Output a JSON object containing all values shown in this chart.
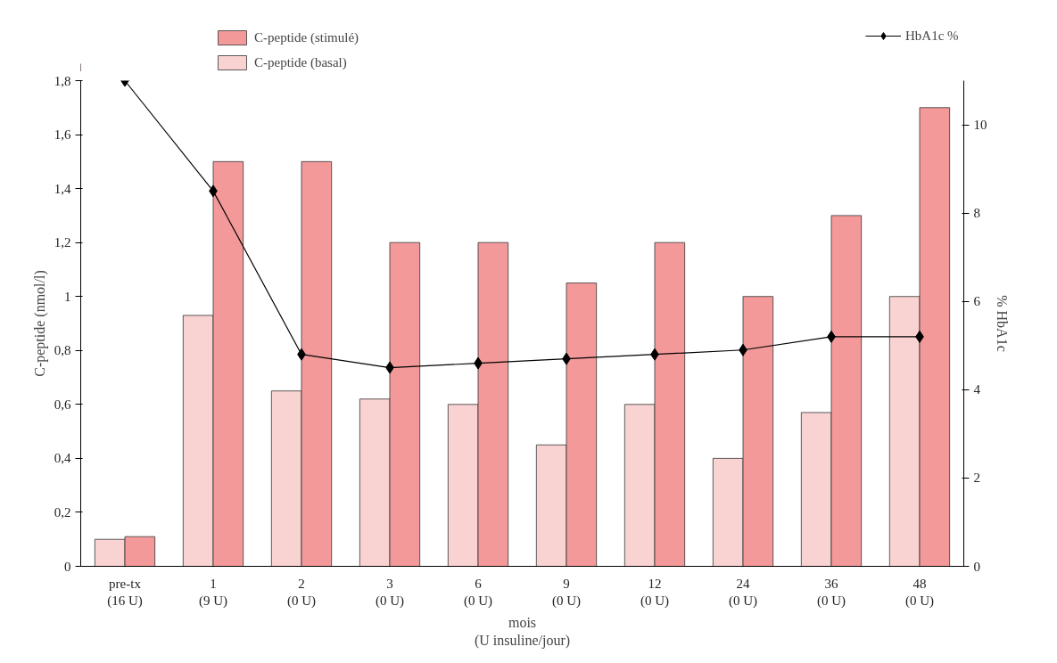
{
  "chart_data": {
    "type": "bar",
    "xlabel": "mois\n(U insuline/jour)",
    "ylabel": "C-peptide (nmol/l)",
    "y2label": "% HbA1c",
    "categories": [
      "pre-tx\n(16 U)",
      "1\n(9 U)",
      "2\n(0 U)",
      "3\n(0 U)",
      "6\n(0 U)",
      "9\n(0 U)",
      "12\n(0 U)",
      "24\n(0 U)",
      "36\n(0 U)",
      "48\n(0 U)"
    ],
    "series": [
      {
        "name": "C-peptide (basal)",
        "color": "#f9d3d1",
        "values": [
          0.1,
          0.93,
          0.65,
          0.62,
          0.6,
          0.45,
          0.6,
          0.4,
          0.57,
          1.0
        ]
      },
      {
        "name": "C-peptide (stimulé)",
        "color": "#f4999a",
        "values": [
          0.11,
          1.5,
          1.5,
          1.2,
          1.2,
          1.05,
          1.2,
          1.0,
          1.3,
          1.7
        ]
      },
      {
        "name": "HbA1c %",
        "type": "line",
        "axis": "y2",
        "color": "#000000",
        "marker": "diamond",
        "values": [
          11.0,
          8.5,
          4.8,
          4.5,
          4.6,
          4.7,
          4.8,
          4.9,
          5.2,
          5.2
        ]
      }
    ],
    "ylim": [
      0,
      1.8
    ],
    "yticks": [
      0,
      {
        "value": 0.2,
        "label": "0,2"
      },
      {
        "value": 0.4,
        "label": "0,4"
      },
      {
        "value": 0.6,
        "label": "0,6"
      },
      {
        "value": 0.8,
        "label": "0,8"
      },
      1,
      {
        "value": 1.2,
        "label": "1,2"
      },
      {
        "value": 1.4,
        "label": "1,4"
      },
      {
        "value": 1.6,
        "label": "1,6"
      },
      {
        "value": 1.8,
        "label": "1,8"
      }
    ],
    "y2lim": [
      0,
      11
    ],
    "y2ticks": [
      0,
      2,
      4,
      6,
      8,
      10
    ],
    "grid": false,
    "legend": "top"
  }
}
